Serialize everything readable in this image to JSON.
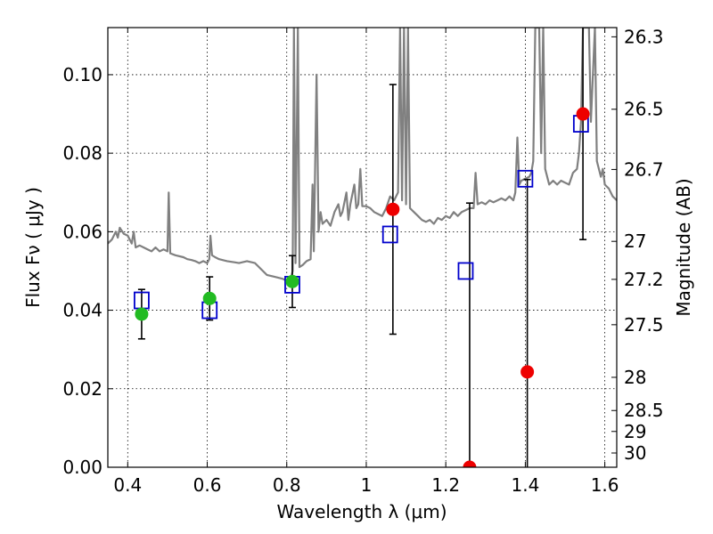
{
  "chart_data": {
    "type": "scatter",
    "title": "",
    "xlabel": "Wavelength  λ (μm)",
    "ylabel": "Flux  Fν  ( μJy )",
    "y2label": "Magnitude (AB)",
    "xlim": [
      0.35,
      1.63
    ],
    "ylim": [
      0,
      0.112
    ],
    "grid": true,
    "x_ticks": [
      0.4,
      0.6,
      0.8,
      1.0,
      1.2,
      1.4,
      1.6
    ],
    "x_tick_labels": [
      "0.4",
      "0.6",
      "0.8",
      "1",
      "1.2",
      "1.4",
      "1.6"
    ],
    "y_ticks": [
      0,
      0.02,
      0.04,
      0.06,
      0.08,
      0.1
    ],
    "y_tick_labels": [
      "0.00",
      "0.02",
      "0.04",
      "0.06",
      "0.08",
      "0.10"
    ],
    "mag_ticks": [
      {
        "value": 26.3,
        "label": "26.3"
      },
      {
        "value": 26.5,
        "label": "26.5"
      },
      {
        "value": 26.7,
        "label": "26.7"
      },
      {
        "value": 27.0,
        "label": "27"
      },
      {
        "value": 27.2,
        "label": "27.2"
      },
      {
        "value": 27.5,
        "label": "27.5"
      },
      {
        "value": 28.0,
        "label": "28"
      },
      {
        "value": 28.5,
        "label": "28.5"
      },
      {
        "value": 29.0,
        "label": "29"
      },
      {
        "value": 30.0,
        "label": "30"
      }
    ],
    "colors": {
      "model": "#808080",
      "model_phot": "#0000cc",
      "green": "#22bb22",
      "red": "#ee0000",
      "errorbar": "#000000"
    },
    "model_photometry": [
      {
        "x": 0.435,
        "y": 0.0425
      },
      {
        "x": 0.606,
        "y": 0.04
      },
      {
        "x": 0.814,
        "y": 0.0465
      },
      {
        "x": 1.06,
        "y": 0.0593
      },
      {
        "x": 1.25,
        "y": 0.05
      },
      {
        "x": 1.4,
        "y": 0.0735
      },
      {
        "x": 1.54,
        "y": 0.0875
      }
    ],
    "observed_optical": [
      {
        "x": 0.435,
        "y": 0.039,
        "err": 0.0063
      },
      {
        "x": 0.606,
        "y": 0.043,
        "err": 0.0055
      },
      {
        "x": 0.814,
        "y": 0.0473,
        "err": 0.0066
      }
    ],
    "observed_ir": [
      {
        "x": 1.067,
        "y": 0.0657,
        "err": 0.0318
      },
      {
        "x": 1.26,
        "y": 0.0,
        "err": 0.0673
      },
      {
        "x": 1.405,
        "y": 0.0243,
        "err": 0.049
      },
      {
        "x": 1.545,
        "y": 0.09,
        "err": 0.032
      }
    ],
    "model_spectrum": [
      [
        0.35,
        0.057
      ],
      [
        0.36,
        0.058
      ],
      [
        0.37,
        0.06
      ],
      [
        0.375,
        0.0585
      ],
      [
        0.38,
        0.061
      ],
      [
        0.39,
        0.0595
      ],
      [
        0.4,
        0.059
      ],
      [
        0.41,
        0.057
      ],
      [
        0.415,
        0.06
      ],
      [
        0.42,
        0.056
      ],
      [
        0.43,
        0.0565
      ],
      [
        0.44,
        0.056
      ],
      [
        0.45,
        0.0555
      ],
      [
        0.46,
        0.055
      ],
      [
        0.47,
        0.056
      ],
      [
        0.48,
        0.055
      ],
      [
        0.49,
        0.0555
      ],
      [
        0.5,
        0.055
      ],
      [
        0.503,
        0.07
      ],
      [
        0.507,
        0.0545
      ],
      [
        0.52,
        0.054
      ],
      [
        0.54,
        0.0535
      ],
      [
        0.55,
        0.053
      ],
      [
        0.56,
        0.0528
      ],
      [
        0.57,
        0.0525
      ],
      [
        0.58,
        0.052
      ],
      [
        0.59,
        0.0525
      ],
      [
        0.6,
        0.052
      ],
      [
        0.605,
        0.053
      ],
      [
        0.608,
        0.059
      ],
      [
        0.612,
        0.054
      ],
      [
        0.62,
        0.0535
      ],
      [
        0.63,
        0.053
      ],
      [
        0.65,
        0.0525
      ],
      [
        0.67,
        0.0522
      ],
      [
        0.68,
        0.052
      ],
      [
        0.7,
        0.0525
      ],
      [
        0.72,
        0.052
      ],
      [
        0.74,
        0.05
      ],
      [
        0.75,
        0.049
      ],
      [
        0.77,
        0.0485
      ],
      [
        0.79,
        0.048
      ],
      [
        0.8,
        0.0475
      ],
      [
        0.81,
        0.048
      ],
      [
        0.815,
        0.05
      ],
      [
        0.818,
        0.112
      ],
      [
        0.822,
        0.052
      ],
      [
        0.828,
        0.112
      ],
      [
        0.832,
        0.051
      ],
      [
        0.84,
        0.0515
      ],
      [
        0.85,
        0.0525
      ],
      [
        0.86,
        0.053
      ],
      [
        0.865,
        0.072
      ],
      [
        0.868,
        0.055
      ],
      [
        0.875,
        0.1
      ],
      [
        0.88,
        0.06
      ],
      [
        0.885,
        0.065
      ],
      [
        0.89,
        0.062
      ],
      [
        0.9,
        0.063
      ],
      [
        0.91,
        0.0615
      ],
      [
        0.92,
        0.065
      ],
      [
        0.93,
        0.067
      ],
      [
        0.935,
        0.064
      ],
      [
        0.94,
        0.065
      ],
      [
        0.95,
        0.07
      ],
      [
        0.955,
        0.063
      ],
      [
        0.96,
        0.067
      ],
      [
        0.97,
        0.072
      ],
      [
        0.975,
        0.066
      ],
      [
        0.98,
        0.067
      ],
      [
        0.985,
        0.076
      ],
      [
        0.99,
        0.0665
      ],
      [
        1.0,
        0.0665
      ],
      [
        1.01,
        0.066
      ],
      [
        1.02,
        0.065
      ],
      [
        1.03,
        0.0645
      ],
      [
        1.04,
        0.064
      ],
      [
        1.05,
        0.066
      ],
      [
        1.06,
        0.069
      ],
      [
        1.07,
        0.068
      ],
      [
        1.08,
        0.07
      ],
      [
        1.085,
        0.112
      ],
      [
        1.09,
        0.068
      ],
      [
        1.095,
        0.112
      ],
      [
        1.1,
        0.067
      ],
      [
        1.105,
        0.112
      ],
      [
        1.11,
        0.066
      ],
      [
        1.12,
        0.065
      ],
      [
        1.13,
        0.064
      ],
      [
        1.14,
        0.063
      ],
      [
        1.15,
        0.0625
      ],
      [
        1.16,
        0.063
      ],
      [
        1.17,
        0.062
      ],
      [
        1.18,
        0.0635
      ],
      [
        1.19,
        0.063
      ],
      [
        1.2,
        0.064
      ],
      [
        1.21,
        0.0635
      ],
      [
        1.22,
        0.065
      ],
      [
        1.23,
        0.064
      ],
      [
        1.24,
        0.065
      ],
      [
        1.25,
        0.0655
      ],
      [
        1.26,
        0.066
      ],
      [
        1.27,
        0.066
      ],
      [
        1.275,
        0.075
      ],
      [
        1.28,
        0.067
      ],
      [
        1.29,
        0.0675
      ],
      [
        1.3,
        0.067
      ],
      [
        1.31,
        0.068
      ],
      [
        1.32,
        0.0675
      ],
      [
        1.33,
        0.068
      ],
      [
        1.34,
        0.0685
      ],
      [
        1.35,
        0.068
      ],
      [
        1.36,
        0.069
      ],
      [
        1.37,
        0.068
      ],
      [
        1.375,
        0.07
      ],
      [
        1.38,
        0.084
      ],
      [
        1.385,
        0.072
      ],
      [
        1.39,
        0.073
      ],
      [
        1.4,
        0.0735
      ],
      [
        1.41,
        0.074
      ],
      [
        1.415,
        0.075
      ],
      [
        1.42,
        0.078
      ],
      [
        1.425,
        0.112
      ],
      [
        1.435,
        0.112
      ],
      [
        1.44,
        0.08
      ],
      [
        1.445,
        0.112
      ],
      [
        1.45,
        0.076
      ],
      [
        1.46,
        0.072
      ],
      [
        1.47,
        0.073
      ],
      [
        1.48,
        0.072
      ],
      [
        1.49,
        0.073
      ],
      [
        1.5,
        0.0725
      ],
      [
        1.51,
        0.072
      ],
      [
        1.52,
        0.075
      ],
      [
        1.53,
        0.076
      ],
      [
        1.535,
        0.08
      ],
      [
        1.54,
        0.088
      ],
      [
        1.545,
        0.112
      ],
      [
        1.56,
        0.112
      ],
      [
        1.565,
        0.088
      ],
      [
        1.575,
        0.112
      ],
      [
        1.58,
        0.078
      ],
      [
        1.59,
        0.074
      ],
      [
        1.595,
        0.076
      ],
      [
        1.6,
        0.072
      ],
      [
        1.61,
        0.071
      ],
      [
        1.62,
        0.069
      ],
      [
        1.63,
        0.068
      ]
    ]
  }
}
